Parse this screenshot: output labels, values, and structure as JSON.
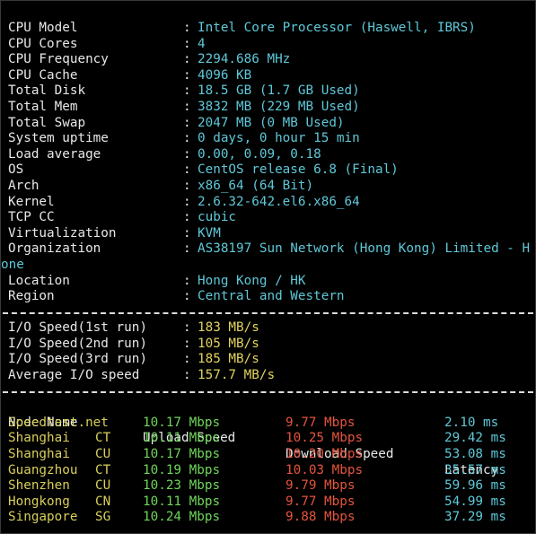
{
  "system": [
    {
      "label": "CPU Model",
      "value": "Intel Core Processor (Haswell, IBRS)"
    },
    {
      "label": "CPU Cores",
      "value": "4"
    },
    {
      "label": "CPU Frequency",
      "value": "2294.686 MHz"
    },
    {
      "label": "CPU Cache",
      "value": "4096 KB"
    },
    {
      "label": "Total Disk",
      "value": "18.5 GB (1.7 GB Used)"
    },
    {
      "label": "Total Mem",
      "value": "3832 MB (229 MB Used)"
    },
    {
      "label": "Total Swap",
      "value": "2047 MB (0 MB Used)"
    },
    {
      "label": "System uptime",
      "value": "0 days, 0 hour 15 min"
    },
    {
      "label": "Load average",
      "value": "0.00, 0.09, 0.18"
    },
    {
      "label": "OS",
      "value": "CentOS release 6.8 (Final)"
    },
    {
      "label": "Arch",
      "value": "x86_64 (64 Bit)"
    },
    {
      "label": "Kernel",
      "value": "2.6.32-642.el6.x86_64"
    },
    {
      "label": "TCP CC",
      "value": "cubic"
    },
    {
      "label": "Virtualization",
      "value": "KVM"
    },
    {
      "label": "Organization",
      "value": "AS38197 Sun Network (Hong Kong) Limited - H",
      "value_wrap": "one"
    },
    {
      "label": "Location",
      "value": "Hong Kong / HK"
    },
    {
      "label": "Region",
      "value": "Central and Western"
    }
  ],
  "separator": ":",
  "io": [
    {
      "label": "I/O Speed(1st run)",
      "value": "183 MB/s"
    },
    {
      "label": "I/O Speed(2nd run)",
      "value": "105 MB/s"
    },
    {
      "label": "I/O Speed(3rd run)",
      "value": "185 MB/s"
    },
    {
      "label": "Average I/O speed",
      "value": "157.7 MB/s"
    }
  ],
  "speed_headers": {
    "node": "Node Name",
    "upload": "Upload Speed",
    "download": "Download Speed",
    "latency": "Latency"
  },
  "speed": [
    {
      "node": "Speedtest.net",
      "isp": "",
      "upload": "10.17 Mbps",
      "download": "9.77 Mbps",
      "latency": "2.10 ms"
    },
    {
      "node": "Shanghai",
      "isp": "CT",
      "upload": "10.11 Mbps",
      "download": "10.25 Mbps",
      "latency": "29.42 ms"
    },
    {
      "node": "Shanghai",
      "isp": "CU",
      "upload": "10.17 Mbps",
      "download": "10.20 Mbps",
      "latency": "53.08 ms"
    },
    {
      "node": "Guangzhou",
      "isp": "CT",
      "upload": "10.19 Mbps",
      "download": "10.03 Mbps",
      "latency": "35.57 ms"
    },
    {
      "node": "Shenzhen",
      "isp": "CU",
      "upload": "10.23 Mbps",
      "download": "9.79 Mbps",
      "latency": "59.96 ms"
    },
    {
      "node": "Hongkong",
      "isp": "CN",
      "upload": "10.11 Mbps",
      "download": "9.77 Mbps",
      "latency": "54.99 ms"
    },
    {
      "node": "Singapore",
      "isp": "SG",
      "upload": "10.24 Mbps",
      "download": "9.88 Mbps",
      "latency": "37.29 ms"
    }
  ],
  "colors": {
    "value": "#5fc8d8",
    "io_value": "#e2d35f",
    "node": "#d8cf5a",
    "upload": "#6fd65a",
    "download": "#e5543d",
    "latency": "#5fc8d8"
  }
}
